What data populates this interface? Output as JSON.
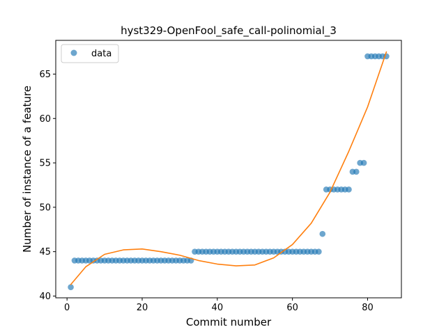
{
  "chart_data": {
    "type": "scatter",
    "title": "hyst329-OpenFool_safe_call-polinomial_3",
    "xlabel": "Commit number",
    "ylabel": "Number of instance of a feature",
    "xlim": [
      -3,
      89
    ],
    "ylim": [
      39.8,
      68.8
    ],
    "xticks": [
      0,
      20,
      40,
      60,
      80
    ],
    "yticks": [
      40,
      45,
      50,
      55,
      60,
      65
    ],
    "grid": false,
    "legend_position": "top-left",
    "colors": {
      "data": "#1f77b4",
      "fit": "#ff7f0e"
    },
    "series": [
      {
        "name": "data",
        "kind": "points",
        "x": [
          1,
          2,
          3,
          4,
          5,
          6,
          7,
          8,
          9,
          10,
          11,
          12,
          13,
          14,
          15,
          16,
          17,
          18,
          19,
          20,
          21,
          22,
          23,
          24,
          25,
          26,
          27,
          28,
          29,
          30,
          31,
          32,
          33,
          34,
          35,
          36,
          37,
          38,
          39,
          40,
          41,
          42,
          43,
          44,
          45,
          46,
          47,
          48,
          49,
          50,
          51,
          52,
          53,
          54,
          55,
          56,
          57,
          58,
          59,
          60,
          61,
          62,
          63,
          64,
          65,
          66,
          67,
          68,
          69,
          70,
          71,
          72,
          73,
          74,
          75,
          76,
          77,
          78,
          79,
          80,
          81,
          82,
          83,
          84,
          85
        ],
        "y": [
          41,
          44,
          44,
          44,
          44,
          44,
          44,
          44,
          44,
          44,
          44,
          44,
          44,
          44,
          44,
          44,
          44,
          44,
          44,
          44,
          44,
          44,
          44,
          44,
          44,
          44,
          44,
          44,
          44,
          44,
          44,
          44,
          44,
          45,
          45,
          45,
          45,
          45,
          45,
          45,
          45,
          45,
          45,
          45,
          45,
          45,
          45,
          45,
          45,
          45,
          45,
          45,
          45,
          45,
          45,
          45,
          45,
          45,
          45,
          45,
          45,
          45,
          45,
          45,
          45,
          45,
          45,
          47,
          52,
          52,
          52,
          52,
          52,
          52,
          52,
          54,
          54,
          55,
          55,
          67,
          67,
          67,
          67,
          67,
          67
        ]
      },
      {
        "kind": "fit-line",
        "x": [
          1,
          5,
          10,
          15,
          20,
          25,
          30,
          35,
          40,
          45,
          50,
          55,
          60,
          65,
          70,
          75,
          80,
          85
        ],
        "y": [
          41.3,
          43.3,
          44.7,
          45.2,
          45.3,
          45.0,
          44.6,
          44.0,
          43.6,
          43.4,
          43.5,
          44.3,
          45.8,
          48.2,
          51.7,
          56.3,
          61.3,
          67.5
        ]
      }
    ]
  }
}
